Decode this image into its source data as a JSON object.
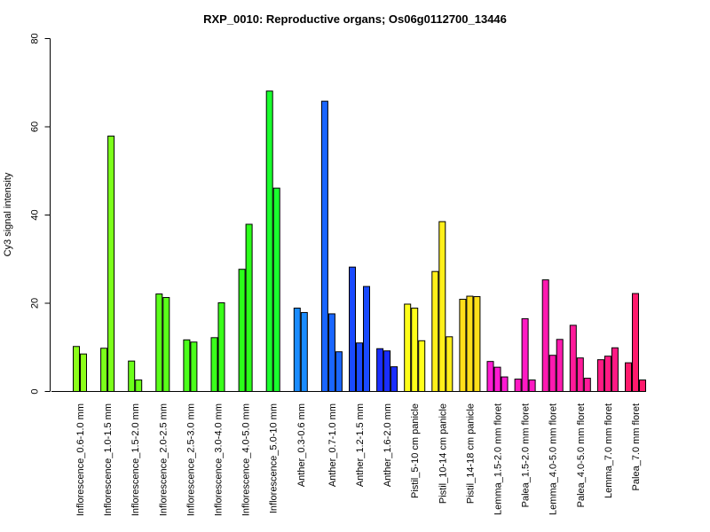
{
  "chart_data": {
    "type": "bar",
    "title": "RXP_0010: Reproductive organs; Os06g0112700_13446",
    "xlabel": "",
    "ylabel": "Cy3 signal intensity",
    "ylim": [
      0,
      80
    ],
    "yticks": [
      "0",
      "20",
      "40",
      "60",
      "80"
    ],
    "grid": false,
    "legend": "none",
    "groups": [
      {
        "label": "Inflorescence_0.6-1.0 mm",
        "color": "#8cff1a",
        "values": [
          10.2,
          8.5
        ]
      },
      {
        "label": "Inflorescence_1.0-1.5 mm",
        "color": "#7cff1a",
        "values": [
          9.8,
          57.9
        ]
      },
      {
        "label": "Inflorescence_1.5-2.0 mm",
        "color": "#6bff1a",
        "values": [
          6.9,
          2.6
        ]
      },
      {
        "label": "Inflorescence_2.0-2.5 mm",
        "color": "#5aff1a",
        "values": [
          22.1,
          21.3
        ]
      },
      {
        "label": "Inflorescence_2.5-3.0 mm",
        "color": "#4aff1a",
        "values": [
          11.7,
          11.2
        ]
      },
      {
        "label": "Inflorescence_3.0-4.0 mm",
        "color": "#3aff1a",
        "values": [
          12.2,
          20.1
        ]
      },
      {
        "label": "Inflorescence_4.0-5.0 mm",
        "color": "#2bff1a",
        "values": [
          27.7,
          37.9
        ]
      },
      {
        "label": "Inflorescence_5.0-10 mm",
        "color": "#1aff2e",
        "values": [
          68.1,
          46.1
        ]
      },
      {
        "label": "Anther_0.3-0.6 mm",
        "color": "#1a8cff",
        "values": [
          18.9,
          17.9
        ]
      },
      {
        "label": "Anther_0.7-1.0 mm",
        "color": "#1a66ff",
        "values": [
          65.8,
          17.6,
          9.0
        ]
      },
      {
        "label": "Anther_1.2-1.5 mm",
        "color": "#1a4aff",
        "values": [
          28.2,
          11.0,
          23.8
        ]
      },
      {
        "label": "Anther_1.6-2.0 mm",
        "color": "#1a2eff",
        "values": [
          9.7,
          9.2,
          5.6
        ]
      },
      {
        "label": "Pistil_5-10 cm panicle",
        "color": "#ffff1a",
        "values": [
          19.8,
          18.9,
          11.5
        ]
      },
      {
        "label": "Pistil_10-14 cm panicle",
        "color": "#ffef1a",
        "values": [
          27.2,
          38.5,
          12.4
        ]
      },
      {
        "label": "Pistil_14-18 cm panicle",
        "color": "#ffdf1a",
        "values": [
          20.9,
          21.6,
          21.5
        ]
      },
      {
        "label": "Lemma_1.5-2.0 mm floret",
        "color": "#ff1ad2",
        "values": [
          6.8,
          5.5,
          3.3
        ]
      },
      {
        "label": "Palea_1.5-2.0 mm floret",
        "color": "#ff1ac2",
        "values": [
          2.8,
          16.5,
          2.6
        ]
      },
      {
        "label": "Lemma_4.0-5.0 mm floret",
        "color": "#ff1ab0",
        "values": [
          25.3,
          8.2,
          11.8
        ]
      },
      {
        "label": "Palea_4.0-5.0 mm floret",
        "color": "#ff1a9a",
        "values": [
          15.0,
          7.6,
          3.0
        ]
      },
      {
        "label": "Lemma_7.0 mm floret",
        "color": "#ff1a84",
        "values": [
          7.2,
          8.0,
          9.9
        ]
      },
      {
        "label": "Palea_7.0 mm floret",
        "color": "#ff1a6c",
        "values": [
          6.5,
          22.2,
          2.6
        ]
      }
    ]
  }
}
